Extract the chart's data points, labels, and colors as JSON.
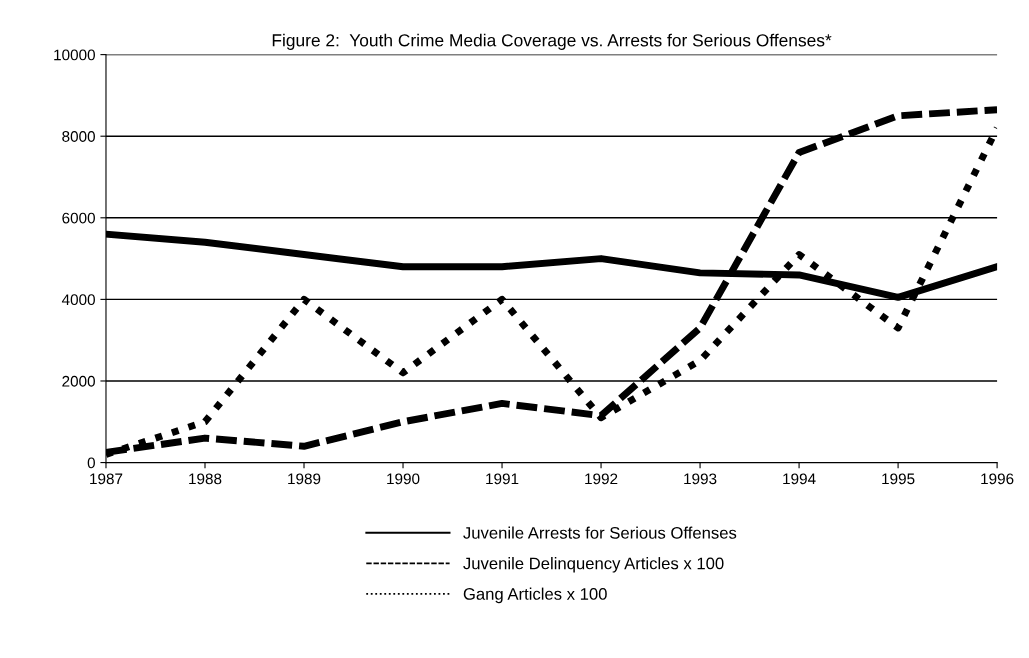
{
  "chart_data": {
    "type": "line",
    "title": "Figure 2:  Youth Crime Media Coverage vs. Arrests for Serious Offenses*",
    "x": [
      1987,
      1988,
      1989,
      1990,
      1991,
      1992,
      1993,
      1994,
      1995,
      1996
    ],
    "xlim": [
      1987,
      1996
    ],
    "xticks": [
      1987,
      1988,
      1989,
      1990,
      1991,
      1992,
      1993,
      1994,
      1995,
      1996
    ],
    "ylim": [
      0,
      10000
    ],
    "yticks": [
      0,
      2000,
      4000,
      6000,
      8000,
      10000
    ],
    "grid": "y",
    "legend": "bottom",
    "marker": "none",
    "series": [
      {
        "name": "Juvenile Arrests for Serious Offenses",
        "color": "#000000",
        "line_style": "solid",
        "values": [
          5600,
          5400,
          5100,
          4800,
          4800,
          5000,
          4650,
          4600,
          4050,
          4800
        ]
      },
      {
        "name": "Juvenile Delinquency Articles x 100",
        "color": "#000000",
        "line_style": "dashed",
        "values": [
          250,
          600,
          400,
          1000,
          1450,
          1150,
          3300,
          7600,
          8500,
          8650
        ]
      },
      {
        "name": "Gang Articles x 100",
        "color": "#000000",
        "line_style": "dotted",
        "values": [
          200,
          1000,
          4000,
          2200,
          4000,
          1100,
          2500,
          5100,
          3300,
          8200
        ]
      }
    ]
  }
}
